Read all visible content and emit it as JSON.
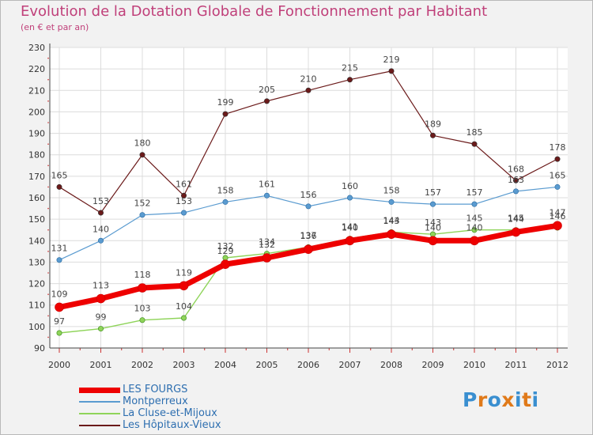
{
  "title": "Evolution de la Dotation Globale de Fonctionnement par Habitant",
  "subtitle": "(en € et par an)",
  "logo": {
    "text": "Proxiti",
    "letters": [
      "P",
      "r",
      "o",
      "x",
      "i",
      "t",
      "i"
    ],
    "colors": [
      "#3a8fd0",
      "#e07a1a",
      "#3a8fd0",
      "#e07a1a",
      "#3a8fd0",
      "#e07a1a",
      "#3a8fd0"
    ]
  },
  "chart_data": {
    "type": "line",
    "title": "Evolution de la Dotation Globale de Fonctionnement par Habitant",
    "ylabel": "(en € et par an)",
    "xlabel": "",
    "ylim": [
      90,
      230
    ],
    "yticks": [
      90,
      100,
      110,
      120,
      130,
      140,
      150,
      160,
      170,
      180,
      190,
      200,
      210,
      220,
      230
    ],
    "x": [
      "2000",
      "2001",
      "2002",
      "2003",
      "2004",
      "2005",
      "2006",
      "2007",
      "2008",
      "2009",
      "2010",
      "2011",
      "2012"
    ],
    "grid": true,
    "legend": "bottom-left",
    "series": [
      {
        "name": "Les Hôpitaux-Vieux",
        "color": "#6b1a1a",
        "values": [
          165,
          153,
          180,
          161,
          199,
          205,
          210,
          215,
          219,
          189,
          185,
          168,
          178
        ]
      },
      {
        "name": "Montperreux",
        "color": "#5a9bd0",
        "values": [
          131,
          140,
          152,
          153,
          158,
          161,
          156,
          160,
          158,
          157,
          157,
          163,
          165
        ]
      },
      {
        "name": "La Cluse-et-Mijoux",
        "color": "#8fd45a",
        "values": [
          97,
          99,
          103,
          104,
          132,
          134,
          137,
          141,
          144,
          143,
          145,
          145,
          146
        ]
      },
      {
        "name": "LES FOURGS",
        "color": "#ee0000",
        "values": [
          109,
          113,
          118,
          119,
          129,
          132,
          136,
          140,
          143,
          140,
          140,
          144,
          147
        ]
      }
    ],
    "legend_order": [
      "LES FOURGS",
      "Montperreux",
      "La Cluse-et-Mijoux",
      "Les Hôpitaux-Vieux"
    ]
  }
}
